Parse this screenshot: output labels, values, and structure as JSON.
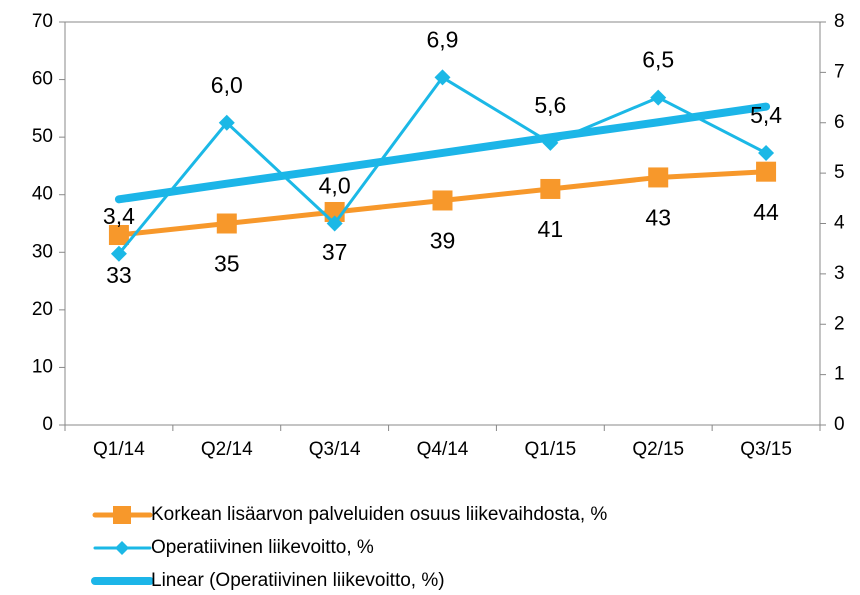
{
  "chart_data": {
    "type": "line",
    "categories": [
      "Q1/14",
      "Q2/14",
      "Q3/14",
      "Q4/14",
      "Q1/15",
      "Q2/15",
      "Q3/15"
    ],
    "series": [
      {
        "name": "Korkean lisäarvon palveluiden osuus liikevaihdosta, %",
        "color": "#f7982b",
        "marker": "square",
        "values": [
          33,
          35,
          37,
          39,
          41,
          43,
          44
        ]
      },
      {
        "name": "Operatiivinen liikevoitto, %",
        "color": "#1bb8e6",
        "marker": "diamond",
        "axis": "y2",
        "values": [
          3.4,
          6.0,
          4.0,
          6.9,
          5.6,
          6.5,
          5.4
        ],
        "value_labels": [
          "3,4",
          "6,0",
          "4,0",
          "6,9",
          "5,6",
          "6,5",
          "5,4"
        ]
      },
      {
        "name": "Linear (Operatiivinen liikevoitto, %)",
        "color": "#1cb5e8",
        "marker": "none",
        "axis": "y2",
        "values": [
          4.48,
          4.79,
          5.09,
          5.4,
          5.71,
          6.01,
          6.32
        ]
      }
    ],
    "ylim": [
      0,
      70
    ],
    "yticks": [
      0,
      10,
      20,
      30,
      40,
      50,
      60,
      70
    ],
    "y2lim": [
      0,
      8
    ],
    "y2ticks": [
      0,
      1,
      2,
      3,
      4,
      5,
      6,
      7,
      8
    ],
    "grid": false,
    "legend": "bottom"
  }
}
